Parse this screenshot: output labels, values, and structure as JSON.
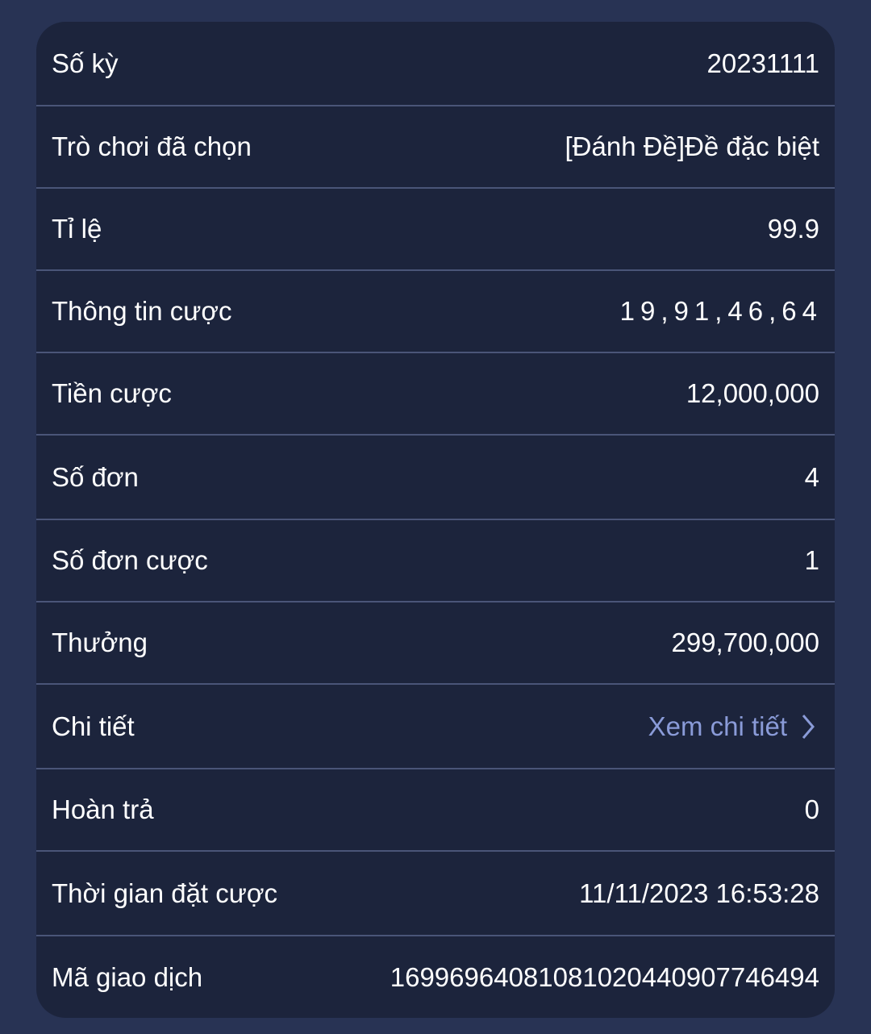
{
  "colors": {
    "background": "#283354",
    "card": "#1c243c",
    "divider": "#4a5578",
    "link": "#8a9bd8",
    "text": "#ffffff"
  },
  "rows": [
    {
      "label": "Số kỳ",
      "value": "20231111"
    },
    {
      "label": "Trò chơi đã chọn",
      "value": "[Đánh Đề]Đề đặc biệt"
    },
    {
      "label": "Tỉ lệ",
      "value": "99.9"
    },
    {
      "label": "Thông tin cược",
      "value": "19,91,46,64"
    },
    {
      "label": "Tiền cược",
      "value": "12,000,000"
    },
    {
      "label": "Số đơn",
      "value": "4"
    },
    {
      "label": "Số đơn cược",
      "value": "1"
    },
    {
      "label": "Thưởng",
      "value": "299,700,000"
    },
    {
      "label": "Chi tiết",
      "value": "Xem chi tiết",
      "icon": "chevron-right-icon"
    },
    {
      "label": "Hoàn trả",
      "value": "0"
    },
    {
      "label": "Thời gian đặt cược",
      "value": "11/11/2023 16:53:28"
    },
    {
      "label": "Mã giao dịch",
      "value": "1699696408108102044090774649 4"
    }
  ]
}
